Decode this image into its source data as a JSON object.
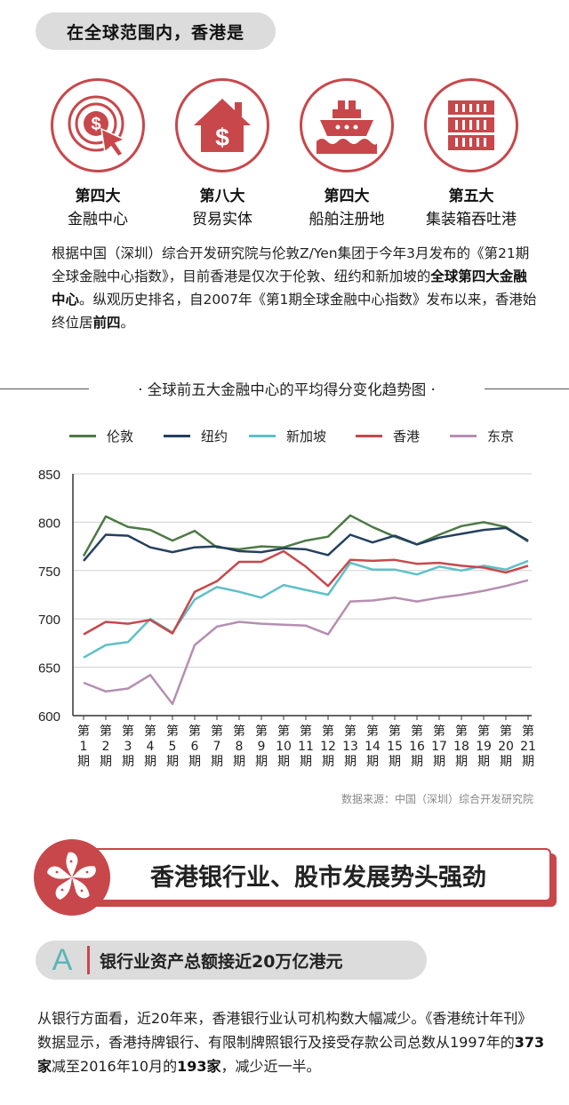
{
  "header": {
    "title": "在全球范围内，香港是"
  },
  "ranks": [
    {
      "num": "第四大",
      "label": "金融中心",
      "icon": "dollar-target-icon"
    },
    {
      "num": "第八大",
      "label": "贸易实体",
      "icon": "house-dollar-icon"
    },
    {
      "num": "第四大",
      "label": "船舶注册地",
      "icon": "ship-icon"
    },
    {
      "num": "第五大",
      "label": "集装箱吞吐港",
      "icon": "container-icon"
    }
  ],
  "intro": {
    "p1": "根据中国（深圳）综合开发研究院与伦敦Z/Yen集团于今年3月发布的《第21期全球金融中心指数》，目前香港是仅次于伦敦、纽约和新加坡的",
    "b1": "全球第四大金融中心",
    "p2": "。纵观历史排名，自2007年《第1期全球金融中心指数》发布以来，香港始终位居",
    "b2": "前四",
    "p3": "。"
  },
  "chart_title": "· 全球前五大金融中心的平均得分变化趋势图 ·",
  "colors": {
    "accent": "#c8474b",
    "london": "#4d7a45",
    "newyork": "#24405f",
    "singapore": "#5ec0c7",
    "hongkong": "#c8474b",
    "tokyo": "#b58fb1"
  },
  "chart_data": {
    "type": "line",
    "title": "全球前五大金融中心的平均得分变化趋势图",
    "x": [
      "第\n1\n期",
      "第\n2\n期",
      "第\n3\n期",
      "第\n4\n期",
      "第\n5\n期",
      "第\n6\n期",
      "第\n7\n期",
      "第\n8\n期",
      "第\n9\n期",
      "第\n10\n期",
      "第\n11\n期",
      "第\n12\n期",
      "第\n13\n期",
      "第\n14\n期",
      "第\n15\n期",
      "第\n16\n期",
      "第\n17\n期",
      "第\n18\n期",
      "第\n19\n期",
      "第\n20\n期",
      "第\n21\n期"
    ],
    "ylim": [
      600,
      850
    ],
    "yticks": [
      600,
      650,
      700,
      750,
      800,
      850
    ],
    "series": [
      {
        "name": "伦敦",
        "color": "#4d7a45",
        "values": [
          765,
          806,
          795,
          792,
          781,
          791,
          774,
          772,
          775,
          774,
          781,
          785,
          807,
          795,
          785,
          777,
          787,
          796,
          800,
          795,
          780
        ]
      },
      {
        "name": "纽约",
        "color": "#24405f",
        "values": [
          760,
          787,
          786,
          774,
          769,
          774,
          775,
          770,
          769,
          773,
          772,
          766,
          787,
          779,
          786,
          777,
          784,
          788,
          792,
          794,
          781
        ]
      },
      {
        "name": "新加坡",
        "color": "#5ec0c7",
        "values": [
          660,
          673,
          676,
          700,
          686,
          720,
          733,
          728,
          722,
          735,
          730,
          725,
          758,
          751,
          751,
          746,
          754,
          750,
          755,
          751,
          760
        ]
      },
      {
        "name": "香港",
        "color": "#c8474b",
        "values": [
          684,
          697,
          695,
          699,
          685,
          728,
          739,
          759,
          759,
          770,
          754,
          734,
          761,
          760,
          761,
          757,
          758,
          755,
          753,
          748,
          755
        ]
      },
      {
        "name": "东京",
        "color": "#b58fb1",
        "values": [
          634,
          625,
          628,
          642,
          612,
          673,
          692,
          697,
          695,
          694,
          693,
          684,
          718,
          719,
          722,
          718,
          722,
          725,
          729,
          734,
          740
        ]
      }
    ]
  },
  "source": "数据来源：中国（深圳）综合开发研究院",
  "section": {
    "title": "香港银行业、股市发展势头强劲"
  },
  "subsection": {
    "letter": "A",
    "title": "银行业资产总额接近20万亿港元"
  },
  "body2": {
    "p1": "从银行方面看，近20年来，香港银行业认可机构数大幅减少。《香港统计年刊》数据显示，香港持牌银行、有限制牌照银行及接受存款公司总数从1997年的",
    "b1": "373家",
    "p2": "减至2016年10月的",
    "b2": "193家",
    "p3": "，减少近一半。"
  }
}
